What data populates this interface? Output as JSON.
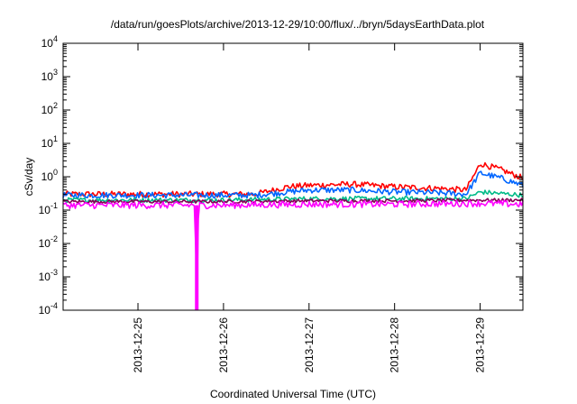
{
  "chart_data": {
    "type": "line",
    "title": "/data/run/goesPlots/archive/2013-12-29/10:00/flux/../bryn/5daysEarthData.plot",
    "xlabel": "Coordinated Universal Time (UTC)",
    "ylabel": "cSv/day",
    "yscale": "log",
    "ylim": [
      0.0001,
      10000
    ],
    "y_ticks": [
      {
        "value": 0.0001,
        "base": "10",
        "exp": "-4"
      },
      {
        "value": 0.001,
        "base": "10",
        "exp": "-3"
      },
      {
        "value": 0.01,
        "base": "10",
        "exp": "-2"
      },
      {
        "value": 0.1,
        "base": "10",
        "exp": "-1"
      },
      {
        "value": 1,
        "base": "10",
        "exp": "0"
      },
      {
        "value": 10,
        "base": "10",
        "exp": "1"
      },
      {
        "value": 100,
        "base": "10",
        "exp": "2"
      },
      {
        "value": 1000,
        "base": "10",
        "exp": "3"
      },
      {
        "value": 10000,
        "base": "10",
        "exp": "4"
      }
    ],
    "xlim": [
      "2013-12-24T03:00",
      "2013-12-29T12:00"
    ],
    "x_ticks": [
      {
        "value": "2013-12-25T00:00",
        "label": "2013-12-25"
      },
      {
        "value": "2013-12-26T00:00",
        "label": "2013-12-26"
      },
      {
        "value": "2013-12-27T00:00",
        "label": "2013-12-27"
      },
      {
        "value": "2013-12-28T00:00",
        "label": "2013-12-28"
      },
      {
        "value": "2013-12-29T00:00",
        "label": "2013-12-29"
      }
    ],
    "grid": false,
    "legend": "none",
    "series": [
      {
        "color": "#ff0000",
        "x": [
          "2013-12-24T03:00",
          "2013-12-24T12:00",
          "2013-12-25T00:00",
          "2013-12-25T12:00",
          "2013-12-26T00:00",
          "2013-12-26T09:00",
          "2013-12-26T18:00",
          "2013-12-27T00:00",
          "2013-12-27T12:00",
          "2013-12-28T00:00",
          "2013-12-28T12:00",
          "2013-12-28T20:00",
          "2013-12-28T23:00",
          "2013-12-29T00:00",
          "2013-12-29T06:00",
          "2013-12-29T12:00"
        ],
        "y": [
          0.3,
          0.3,
          0.3,
          0.3,
          0.3,
          0.3,
          0.5,
          0.55,
          0.6,
          0.5,
          0.45,
          0.4,
          1.5,
          2.5,
          1.6,
          0.9
        ]
      },
      {
        "color": "#0066ff",
        "x": [
          "2013-12-24T03:00",
          "2013-12-24T12:00",
          "2013-12-25T00:00",
          "2013-12-25T12:00",
          "2013-12-26T00:00",
          "2013-12-26T09:00",
          "2013-12-26T18:00",
          "2013-12-27T00:00",
          "2013-12-27T12:00",
          "2013-12-28T00:00",
          "2013-12-28T12:00",
          "2013-12-28T20:00",
          "2013-12-28T23:00",
          "2013-12-29T00:00",
          "2013-12-29T06:00",
          "2013-12-29T12:00"
        ],
        "y": [
          0.28,
          0.28,
          0.28,
          0.28,
          0.28,
          0.28,
          0.35,
          0.4,
          0.4,
          0.35,
          0.33,
          0.3,
          0.9,
          1.3,
          0.9,
          0.55
        ]
      },
      {
        "color": "#00bb88",
        "x": [
          "2013-12-24T03:00",
          "2013-12-25T00:00",
          "2013-12-26T00:00",
          "2013-12-27T00:00",
          "2013-12-28T00:00",
          "2013-12-28T20:00",
          "2013-12-29T00:00",
          "2013-12-29T12:00"
        ],
        "y": [
          0.2,
          0.2,
          0.2,
          0.22,
          0.22,
          0.22,
          0.35,
          0.28
        ]
      },
      {
        "color": "#880055",
        "x": [
          "2013-12-24T03:00",
          "2013-12-25T00:00",
          "2013-12-26T00:00",
          "2013-12-27T00:00",
          "2013-12-28T00:00",
          "2013-12-29T00:00",
          "2013-12-29T12:00"
        ],
        "y": [
          0.18,
          0.18,
          0.18,
          0.19,
          0.19,
          0.2,
          0.2
        ]
      },
      {
        "color": "#ff00ff",
        "x": [
          "2013-12-24T03:00",
          "2013-12-24T12:00",
          "2013-12-25T00:00",
          "2013-12-25T12:00",
          "2013-12-25T16:00",
          "2013-12-25T16:30",
          "2013-12-25T17:00",
          "2013-12-26T00:00",
          "2013-12-27T00:00",
          "2013-12-28T00:00",
          "2013-12-29T00:00",
          "2013-12-29T12:00"
        ],
        "y": [
          0.14,
          0.14,
          0.14,
          0.14,
          0.14,
          0.0001,
          0.14,
          0.14,
          0.15,
          0.15,
          0.16,
          0.15
        ]
      }
    ]
  }
}
